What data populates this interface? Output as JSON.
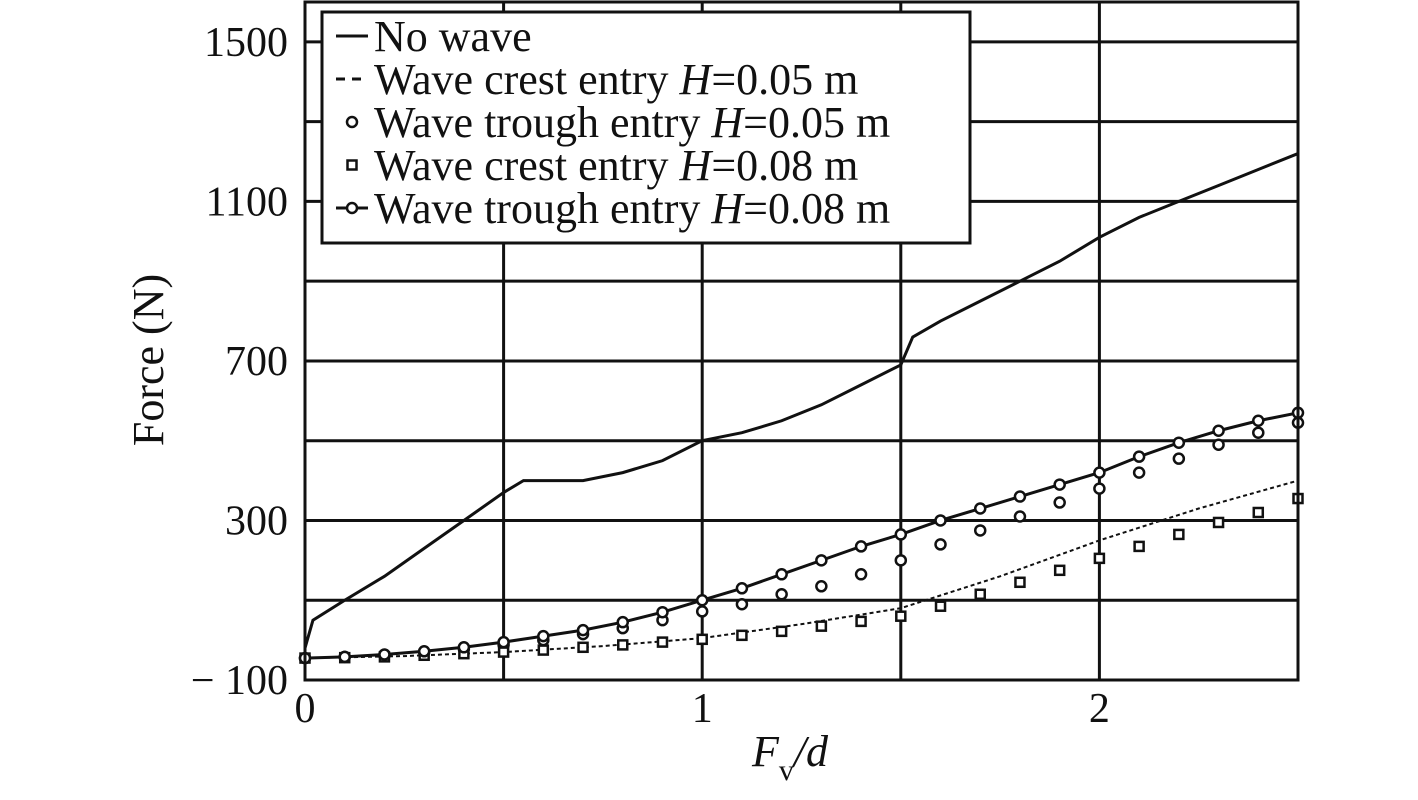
{
  "chart_data": {
    "type": "line",
    "title": "",
    "xlabel": {
      "main": "F",
      "sub": "v",
      "tail": "/d"
    },
    "ylabel": "Force (N)",
    "xlim": [
      0,
      2.5
    ],
    "ylim": [
      -100,
      1600
    ],
    "x_ticks": [
      0,
      1,
      2
    ],
    "x_tick_labels": [
      "0",
      "1",
      "2"
    ],
    "y_ticks": [
      -100,
      300,
      700,
      1100,
      1500
    ],
    "y_tick_labels": [
      "− 100",
      "300",
      "700",
      "1100",
      "1500"
    ],
    "grid": true,
    "legend_position": "top-left",
    "series": [
      {
        "name": "No wave",
        "style": "solid",
        "x": [
          0,
          0.02,
          0.1,
          0.2,
          0.3,
          0.4,
          0.5,
          0.55,
          0.6,
          0.7,
          0.8,
          0.9,
          1.0,
          1.1,
          1.2,
          1.3,
          1.4,
          1.5,
          1.53,
          1.6,
          1.7,
          1.8,
          1.9,
          2.0,
          2.1,
          2.2,
          2.3,
          2.4,
          2.5
        ],
        "y": [
          -20,
          50,
          100,
          160,
          230,
          300,
          370,
          400,
          400,
          400,
          420,
          450,
          500,
          520,
          550,
          590,
          640,
          690,
          760,
          800,
          850,
          900,
          950,
          1010,
          1060,
          1100,
          1140,
          1180,
          1220
        ]
      },
      {
        "name": "Wave crest entry",
        "name_italic": "H",
        "name_tail": "=0.05 m",
        "style": "dashed",
        "x": [
          0,
          0.25,
          0.5,
          0.75,
          1.0,
          1.25,
          1.5,
          1.75,
          2.0,
          2.25,
          2.5
        ],
        "y": [
          -45,
          -40,
          -30,
          -15,
          5,
          40,
          80,
          160,
          250,
          330,
          400
        ]
      },
      {
        "name": "Wave trough entry",
        "name_italic": "H",
        "name_tail": "=0.05 m",
        "style": "circle",
        "x": [
          0,
          0.1,
          0.2,
          0.3,
          0.4,
          0.5,
          0.6,
          0.7,
          0.8,
          0.9,
          1.0,
          1.1,
          1.2,
          1.3,
          1.4,
          1.5,
          1.6,
          1.7,
          1.8,
          1.9,
          2.0,
          2.1,
          2.2,
          2.3,
          2.4,
          2.5
        ],
        "y": [
          -45,
          -42,
          -38,
          -30,
          -22,
          -12,
          0,
          15,
          30,
          50,
          72,
          90,
          115,
          135,
          165,
          200,
          240,
          275,
          310,
          345,
          380,
          420,
          455,
          490,
          520,
          545
        ]
      },
      {
        "name": "Wave crest entry",
        "name_italic": "H",
        "name_tail": "=0.08 m",
        "style": "square",
        "x": [
          0,
          0.1,
          0.2,
          0.3,
          0.4,
          0.5,
          0.6,
          0.7,
          0.8,
          0.9,
          1.0,
          1.1,
          1.2,
          1.3,
          1.4,
          1.5,
          1.6,
          1.7,
          1.8,
          1.9,
          2.0,
          2.1,
          2.2,
          2.3,
          2.4,
          2.5
        ],
        "y": [
          -45,
          -44,
          -42,
          -38,
          -34,
          -30,
          -25,
          -18,
          -12,
          -5,
          2,
          12,
          22,
          35,
          47,
          60,
          85,
          115,
          145,
          175,
          205,
          235,
          265,
          295,
          320,
          355
        ]
      },
      {
        "name": "Wave trough entry",
        "name_italic": "H",
        "name_tail": "=0.08 m",
        "style": "solid-circle",
        "x": [
          0,
          0.1,
          0.2,
          0.3,
          0.4,
          0.5,
          0.6,
          0.7,
          0.8,
          0.9,
          1.0,
          1.1,
          1.2,
          1.3,
          1.4,
          1.5,
          1.6,
          1.7,
          1.8,
          1.9,
          2.0,
          2.1,
          2.2,
          2.3,
          2.4,
          2.5
        ],
        "y": [
          -45,
          -42,
          -36,
          -28,
          -18,
          -5,
          10,
          25,
          45,
          70,
          100,
          130,
          165,
          200,
          235,
          265,
          300,
          330,
          360,
          390,
          420,
          460,
          495,
          525,
          550,
          570
        ]
      }
    ]
  }
}
